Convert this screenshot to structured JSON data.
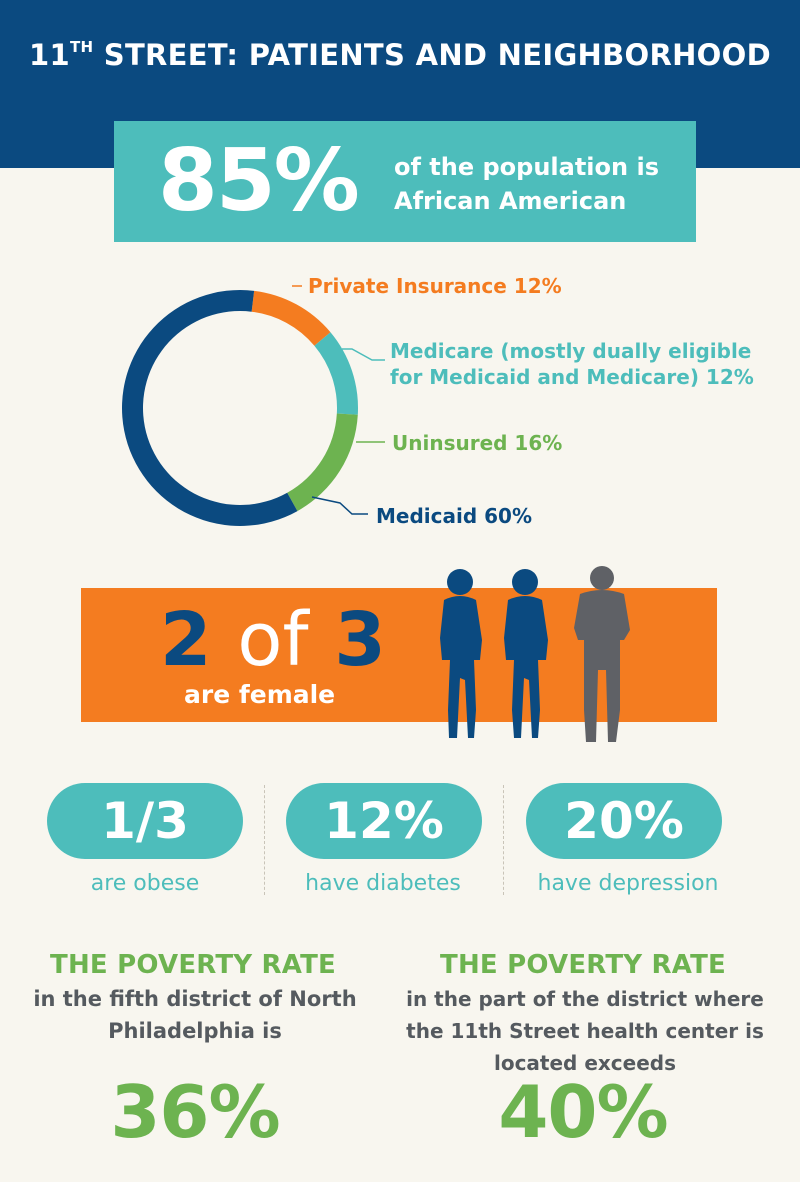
{
  "header": {
    "title_main": "11",
    "title_sup": "TH",
    "title_rest": " STREET: PATIENTS AND NEIGHBORHOOD"
  },
  "population": {
    "value": "85%",
    "text": "of the population is African American"
  },
  "chart_data": {
    "type": "pie",
    "slices": [
      {
        "label": "Private Insurance 12%",
        "value": 12,
        "color": "#f47c20"
      },
      {
        "label": "Medicare (mostly dually eligible for Medicaid and Medicare) 12%",
        "value": 12,
        "color": "#4dbdbb"
      },
      {
        "label": "Uninsured 16%",
        "value": 16,
        "color": "#6db350"
      },
      {
        "label": "Medicaid 60%",
        "value": 60,
        "color": "#0b4a80"
      }
    ]
  },
  "labels": {
    "private": "Private Insurance 12%",
    "medicare_1": "Medicare (mostly dually eligible",
    "medicare_2": "for Medicaid and Medicare) 12%",
    "uninsured": "Uninsured 16%",
    "medicaid": "Medicaid 60%"
  },
  "female": {
    "num1": "2",
    "of": "of",
    "num2": "3",
    "text": "are female"
  },
  "stats": [
    {
      "value": "1/3",
      "label": "are obese"
    },
    {
      "value": "12%",
      "label": "have diabetes"
    },
    {
      "value": "20%",
      "label": "have depression"
    }
  ],
  "poverty": [
    {
      "title": "THE POVERTY RATE",
      "text": "in the fifth district of North Philadelphia is",
      "value": "36%"
    },
    {
      "title": "THE POVERTY RATE",
      "text": "in the part of the district where the 11th Street health center is located exceeds",
      "value": "40%"
    }
  ],
  "colors": {
    "navy": "#0b4a80",
    "teal": "#4dbdbb",
    "orange": "#f47c20",
    "green": "#6db350",
    "gray": "#5f6166"
  }
}
